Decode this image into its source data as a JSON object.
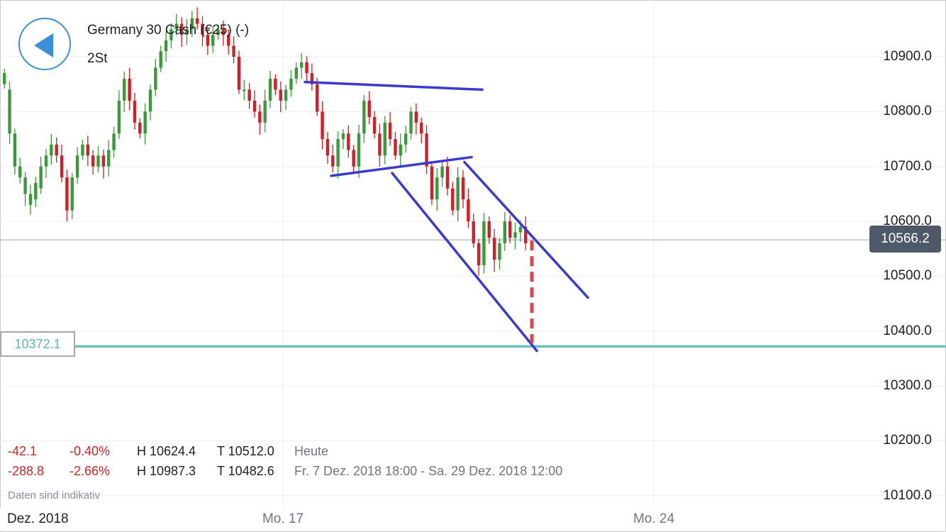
{
  "header": {
    "instrument": "Germany 30 Cash (€25) (-)",
    "timeframe": "2St",
    "back_icon": "back-arrow-icon"
  },
  "price_axis": {
    "labels": [
      "10900.0",
      "10800.0",
      "10700.0",
      "10600.0",
      "10500.0",
      "10400.0",
      "10300.0",
      "10200.0",
      "10100.0"
    ]
  },
  "current_price": "10566.2",
  "level_line": {
    "value": "10372.1"
  },
  "time_axis": {
    "month_label": "Dez. 2018",
    "ticks": [
      "Mo. 17",
      "Mo. 24"
    ]
  },
  "stats": {
    "today": {
      "change": "-42.1",
      "percent": "-0.40%",
      "high": "H 10624.4",
      "low": "T 10512.0",
      "period": "Heute"
    },
    "range": {
      "change": "-288.8",
      "percent": "-2.66%",
      "high": "H 10987.3",
      "low": "T 10482.6",
      "period": "Fr. 7 Dez. 2018 18:00 - Sa. 29 Dez. 2018 12:00"
    }
  },
  "disclaimer": "Daten sind indikativ",
  "colors": {
    "up_candle": "#3a9a3a",
    "down_candle": "#d21e28",
    "trendline": "#3a3ad0",
    "level_line": "#6bbfbf",
    "current_badge": "#4d5868",
    "projection": "#d94848"
  },
  "chart_data": {
    "type": "candlestick",
    "y_range": [
      10060,
      11000
    ],
    "y_ticks": [
      10100,
      10200,
      10300,
      10400,
      10500,
      10600,
      10700,
      10800,
      10900
    ],
    "current_price": 10566.2,
    "horizontal_level": 10372.1,
    "trendlines": [
      {
        "name": "upper",
        "from": [
          430,
          10854
        ],
        "to": [
          680,
          10840
        ]
      },
      {
        "name": "lower",
        "from": [
          467,
          10683
        ],
        "to": [
          665,
          10717
        ]
      },
      {
        "name": "channel-upper",
        "from": [
          655,
          10708
        ],
        "to": [
          829,
          10461
        ]
      },
      {
        "name": "channel-lower",
        "from": [
          553,
          10688
        ],
        "to": [
          757,
          10364
        ]
      }
    ],
    "projection": {
      "from": [
        750,
        10565
      ],
      "to": [
        750,
        10378
      ]
    }
  }
}
